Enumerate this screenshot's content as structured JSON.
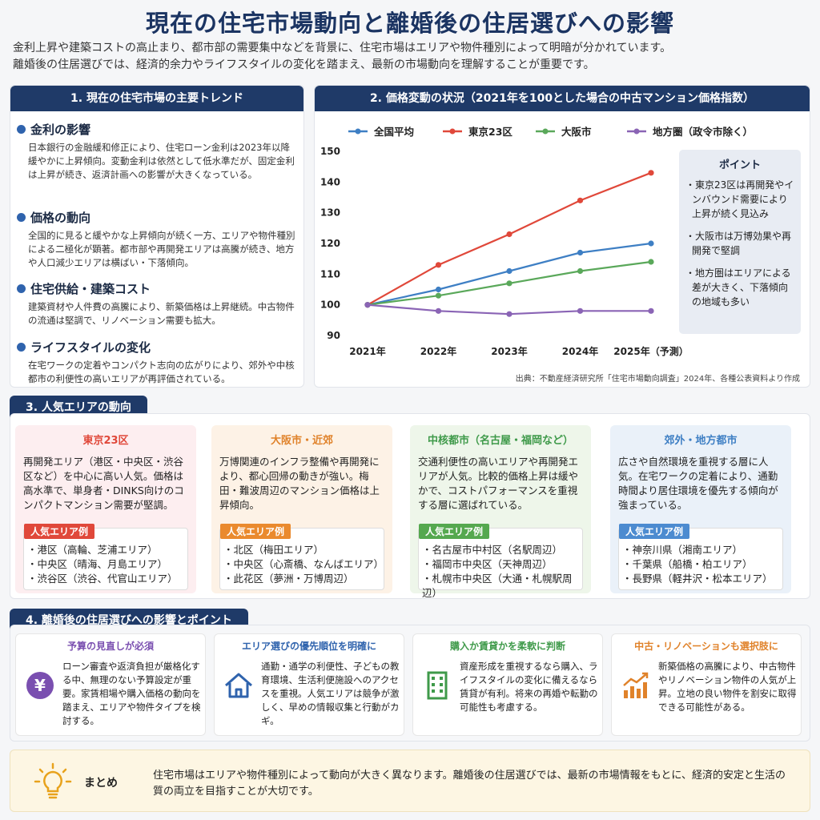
{
  "title": "現在の住宅市場動向と離婚後の住居選びへの影響",
  "intro": [
    "金利上昇や建築コストの高止まり、都市部の需要集中などを背景に、住宅市場はエリアや物件種別によって明暗が分かれています。",
    "離婚後の住居選びでは、経済的余力やライフスタイルの変化を踏まえ、最新の市場動向を理解することが重要です。"
  ],
  "section1": {
    "heading": "1. 現在の住宅市場の主要トレンド",
    "items": [
      {
        "title": "金利の影響",
        "body": "日本銀行の金融緩和修正により、住宅ローン金利は2023年以降緩やかに上昇傾向。変動金利は依然として低水準だが、固定金利は上昇が続き、返済計画への影響が大きくなっている。"
      },
      {
        "title": "価格の動向",
        "body": "全国的に見ると緩やかな上昇傾向が続く一方、エリアや物件種別による二極化が顕著。都市部や再開発エリアは高騰が続き、地方や人口減少エリアは横ばい・下落傾向。"
      },
      {
        "title": "住宅供給・建築コスト",
        "body": "建築資材や人件費の高騰により、新築価格は上昇継続。中古物件の流通は堅調で、リノベーション需要も拡大。"
      },
      {
        "title": "ライフスタイルの変化",
        "body": "在宅ワークの定着やコンパクト志向の広がりにより、郊外や中核都市の利便性の高いエリアが再評価されている。"
      }
    ],
    "colors": {
      "dot": "#2f63ad"
    }
  },
  "section2": {
    "heading": "2. 価格変動の状況（2021年を100とした場合の中古マンション価格指数）",
    "point_title": "ポイント",
    "points": [
      "・東京23区は再開発やインバウンド需要により上昇が続く見込み",
      "・大阪市は万博効果や再開発で堅調",
      "・地方圏はエリアによる差が大きく、下落傾向の地域も多い"
    ],
    "source": "出典：不動産経済研究所「住宅市場動向調査」2024年、各種公表資料より作成"
  },
  "chart_data": {
    "type": "line",
    "categories": [
      "2021年",
      "2022年",
      "2023年",
      "2024年",
      "2025年（予測）"
    ],
    "ylim": [
      90,
      150
    ],
    "yticks": [
      "150",
      "140",
      "130",
      "120",
      "110",
      "100",
      "90"
    ],
    "series": [
      {
        "name": "全国平均",
        "color": "#3e7fc4",
        "values": [
          100,
          105,
          111,
          117,
          120
        ]
      },
      {
        "name": "東京23区",
        "color": "#e0483a",
        "values": [
          100,
          113,
          123,
          134,
          143
        ]
      },
      {
        "name": "大阪市",
        "color": "#5aa85a",
        "values": [
          100,
          103,
          107,
          111,
          114
        ]
      },
      {
        "name": "地方圏（政令市除く）",
        "color": "#8a64b5",
        "values": [
          100,
          98,
          97,
          98,
          98
        ]
      }
    ]
  },
  "section3": {
    "heading": "3. 人気エリアの動向",
    "example_label": "人気エリア例",
    "areas": [
      {
        "title": "東京23区",
        "color": "#e0483a",
        "bg": "#fdeef0",
        "tag": "#e0483a",
        "body": "再開発エリア（港区・中央区・渋谷区など）を中心に高い人気。価格は高水準で、単身者・DINKS向けのコンパクトマンション需要が堅調。",
        "examples": [
          "・港区（高輪、芝浦エリア）",
          "・中央区（晴海、月島エリア）",
          "・渋谷区（渋谷、代官山エリア）"
        ]
      },
      {
        "title": "大阪市・近郊",
        "color": "#e0822a",
        "bg": "#fdf2e6",
        "tag": "#ea8a2e",
        "body": "万博関連のインフラ整備や再開発により、都心回帰の動きが強い。梅田・難波周辺のマンション価格は上昇傾向。",
        "examples": [
          "・北区（梅田エリア）",
          "・中央区（心斎橋、なんばエリア）",
          "・此花区（夢洲・万博周辺）"
        ]
      },
      {
        "title": "中核都市（名古屋・福岡など）",
        "color": "#3f9a4a",
        "bg": "#eef6ea",
        "tag": "#55a84f",
        "body": "交通利便性の高いエリアや再開発エリアが人気。比較的価格上昇は緩やかで、コストパフォーマンスを重視する層に選ばれている。",
        "examples": [
          "・名古屋市中村区（名駅周辺）",
          "・福岡市中央区（天神周辺）",
          "・札幌市中央区（大通・札幌駅周辺）"
        ]
      },
      {
        "title": "郊外・地方都市",
        "color": "#3e7fc4",
        "bg": "#eaf1f9",
        "tag": "#4c8bd0",
        "body": "広さや自然環境を重視する層に人気。在宅ワークの定着により、通勤時間より居住環境を優先する傾向が強まっている。",
        "examples": [
          "・神奈川県（湘南エリア）",
          "・千葉県（船橋・柏エリア）",
          "・長野県（軽井沢・松本エリア）"
        ]
      }
    ]
  },
  "section4": {
    "heading": "4. 離婚後の住居選びへの影響とポイント",
    "cards": [
      {
        "title": "予算の見直しが必須",
        "color": "#7a4fb0",
        "icon": "yen-icon",
        "body": "ローン審査や返済負担が厳格化する中、無理のない予算設定が重要。家賃相場や購入価格の動向を踏まえ、エリアや物件タイプを検討する。"
      },
      {
        "title": "エリア選びの優先順位を明確に",
        "color": "#2f63ad",
        "icon": "house-icon",
        "body": "通勤・通学の利便性、子どもの教育環境、生活利便施設へのアクセスを重視。人気エリアは競争が激しく、早めの情報収集と行動がカギ。"
      },
      {
        "title": "購入か賃貸かを柔軟に判断",
        "color": "#3f9a4a",
        "icon": "building-icon",
        "body": "資産形成を重視するなら購入、ライフスタイルの変化に備えるなら賃貸が有利。将来の再婚や転勤の可能性も考慮する。"
      },
      {
        "title": "中古・リノベーションも選択肢に",
        "color": "#e0822a",
        "icon": "chart-up-icon",
        "body": "新築価格の高騰により、中古物件やリノベーション物件の人気が上昇。立地の良い物件を割安に取得できる可能性がある。"
      }
    ]
  },
  "summary": {
    "label": "まとめ",
    "text": "住宅市場はエリアや物件種別によって動向が大きく異なります。離婚後の住居選びでは、最新の市場情報をもとに、経済的安定と生活の質の両立を目指すことが大切です。"
  }
}
